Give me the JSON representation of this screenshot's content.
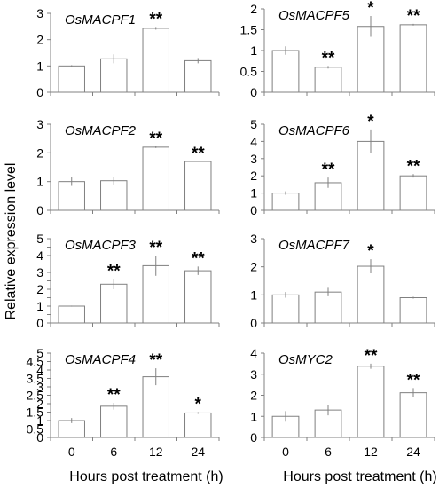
{
  "y_axis_label": "Relative expression level",
  "x_axis_label": "Hours post treatment (h)",
  "chart_data": [
    {
      "type": "bar",
      "title": "OsMACPF1",
      "categories": [
        "0",
        "6",
        "12",
        "24"
      ],
      "values": [
        1.0,
        1.27,
        2.43,
        1.2
      ],
      "errors": [
        0.03,
        0.17,
        0.05,
        0.1
      ],
      "significance": [
        "",
        "",
        "**",
        ""
      ],
      "ylim": [
        0,
        3
      ],
      "yticks": [
        0,
        1,
        2,
        3
      ]
    },
    {
      "type": "bar",
      "title": "OsMACPF5",
      "categories": [
        "0",
        "6",
        "12",
        "24"
      ],
      "values": [
        1.0,
        0.6,
        1.58,
        1.62
      ],
      "errors": [
        0.1,
        0.03,
        0.25,
        0.02
      ],
      "significance": [
        "",
        "**",
        "*",
        "**"
      ],
      "ylim": [
        0,
        2
      ],
      "yticks": [
        0,
        0.5,
        1,
        1.5,
        2
      ]
    },
    {
      "type": "bar",
      "title": "OsMACPF2",
      "categories": [
        "0",
        "6",
        "12",
        "24"
      ],
      "values": [
        1.0,
        1.03,
        2.2,
        1.7
      ],
      "errors": [
        0.15,
        0.13,
        0.03,
        0.0
      ],
      "significance": [
        "",
        "",
        "**",
        "**"
      ],
      "ylim": [
        0,
        3
      ],
      "yticks": [
        0,
        1,
        2,
        3
      ]
    },
    {
      "type": "bar",
      "title": "OsMACPF6",
      "categories": [
        "0",
        "6",
        "12",
        "24"
      ],
      "values": [
        1.0,
        1.6,
        4.0,
        2.0
      ],
      "errors": [
        0.1,
        0.3,
        0.7,
        0.1
      ],
      "significance": [
        "",
        "**",
        "*",
        "**"
      ],
      "ylim": [
        0,
        5
      ],
      "yticks": [
        0,
        1,
        2,
        3,
        4,
        5
      ]
    },
    {
      "type": "bar",
      "title": "OsMACPF3",
      "categories": [
        "0",
        "6",
        "12",
        "24"
      ],
      "values": [
        1.0,
        2.3,
        3.4,
        3.1
      ],
      "errors": [
        0.03,
        0.3,
        0.6,
        0.25
      ],
      "significance": [
        "",
        "**",
        "**",
        "**"
      ],
      "ylim": [
        0,
        5
      ],
      "yticks": [
        0,
        0.5,
        1,
        1.5,
        2,
        2.5,
        3,
        3.5,
        4,
        4.5,
        5
      ],
      "ytick_labels": [
        "0",
        "",
        "1",
        "",
        "2",
        "",
        "3",
        "",
        "4",
        "",
        "5"
      ]
    },
    {
      "type": "bar",
      "title": "OsMACPF7",
      "categories": [
        "0",
        "6",
        "12",
        "24"
      ],
      "values": [
        1.0,
        1.1,
        2.02,
        0.9
      ],
      "errors": [
        0.1,
        0.15,
        0.25,
        0.03
      ],
      "significance": [
        "",
        "",
        "*",
        ""
      ],
      "ylim": [
        0,
        3
      ],
      "yticks": [
        0,
        1,
        2,
        3
      ]
    },
    {
      "type": "bar",
      "title": "OsMACPF4",
      "categories": [
        "0",
        "6",
        "12",
        "24"
      ],
      "values": [
        1.0,
        1.85,
        3.6,
        1.45
      ],
      "errors": [
        0.15,
        0.2,
        0.5,
        0.05
      ],
      "significance": [
        "",
        "**",
        "**",
        "*"
      ],
      "ylim": [
        0,
        5
      ],
      "yticks": [
        0,
        0.5,
        1,
        1.5,
        2,
        2.5,
        3,
        3.5,
        4,
        4.5,
        5
      ],
      "ytick_labels": [
        "0",
        "0.5",
        "1",
        "1.5",
        "2",
        "2.5",
        "3",
        "3.5",
        "4",
        "4.5",
        "5"
      ]
    },
    {
      "type": "bar",
      "title": "OsMYC2",
      "categories": [
        "0",
        "6",
        "12",
        "24"
      ],
      "values": [
        1.0,
        1.3,
        3.38,
        2.12
      ],
      "errors": [
        0.25,
        0.25,
        0.12,
        0.22
      ],
      "significance": [
        "",
        "",
        "**",
        "**"
      ],
      "ylim": [
        0,
        4
      ],
      "yticks": [
        0,
        1,
        2,
        3,
        4
      ]
    }
  ]
}
